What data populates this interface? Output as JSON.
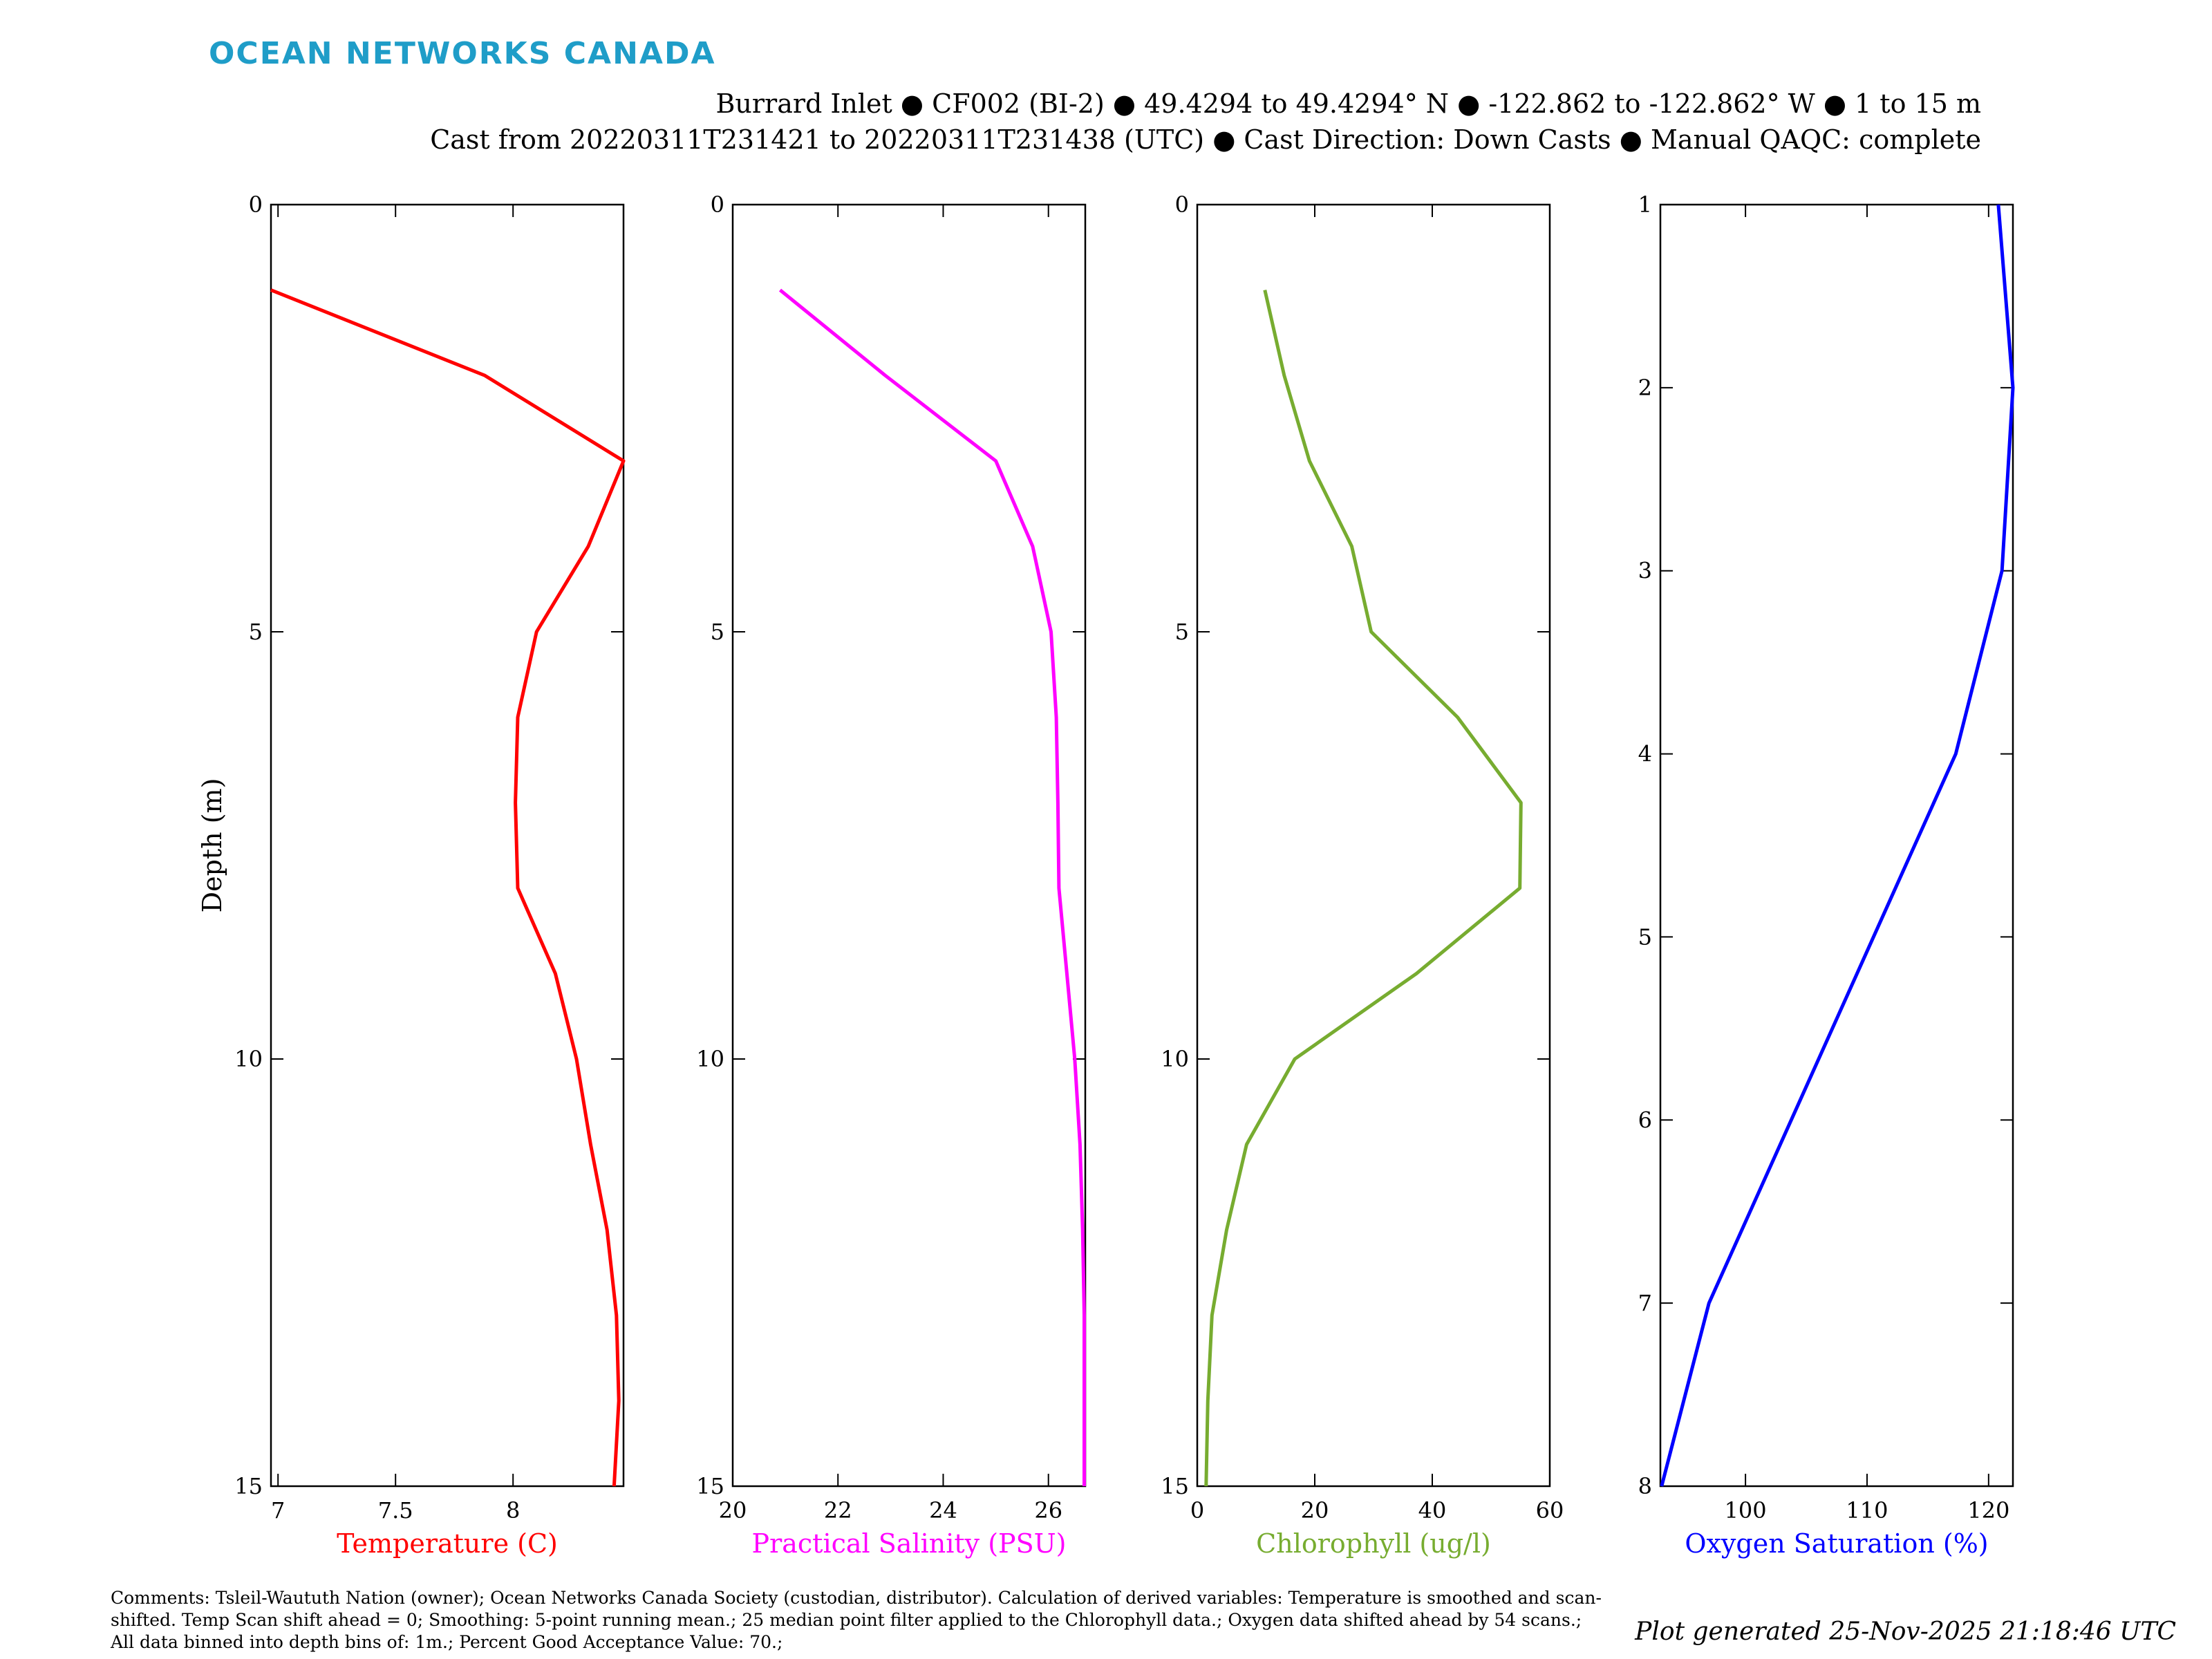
{
  "logo": "OCEAN NETWORKS CANADA",
  "header": {
    "line1": "Burrard Inlet ● CF002 (BI-2) ● 49.4294 to 49.4294° N ● -122.862 to -122.862° W ● 1 to 15 m",
    "line2": "Cast from 20220311T231421 to 20220311T231438 (UTC) ● Cast Direction: Down Casts ● Manual QAQC: complete"
  },
  "comments": "Comments: Tsleil-Waututh Nation (owner); Ocean Networks Canada Society (custodian, distributor). Calculation of derived variables: Temperature is smoothed and scan-shifted. Temp Scan shift ahead = 0; Smoothing: 5-point running mean.; 25 median point filter applied to the Chlorophyll data.; Oxygen data shifted ahead by 54 scans.; All data binned into depth bins of: 1m.; Percent Good Acceptance Value: 70.;",
  "generated": "Plot generated 25-Nov-2025 21:18:46 UTC",
  "chart_data": [
    {
      "type": "line",
      "xlabel": "Temperature (C)",
      "ylabel": "Depth (m)",
      "color": "#ff0000",
      "xlim": [
        6.97,
        8.47
      ],
      "ylim": [
        0,
        15
      ],
      "y_reversed": true,
      "xticks": [
        7,
        7.5,
        8
      ],
      "xtick_labels": [
        "7",
        "7.5",
        "8"
      ],
      "yticks": [
        0,
        5,
        10,
        15
      ],
      "series": [
        {
          "x": [
            6.97,
            7.88,
            8.47,
            8.32,
            8.1,
            8.02,
            8.01,
            8.02,
            8.18,
            8.27,
            8.33,
            8.4,
            8.44,
            8.45,
            8.43
          ],
          "y": [
            1,
            2,
            3,
            4,
            5,
            6,
            7,
            8,
            9,
            10,
            11,
            12,
            13,
            14,
            15
          ]
        }
      ]
    },
    {
      "type": "line",
      "xlabel": "Practical Salinity (PSU)",
      "ylabel": "",
      "color": "#ff00ff",
      "xlim": [
        20,
        26.7
      ],
      "ylim": [
        0,
        15
      ],
      "y_reversed": true,
      "xticks": [
        20,
        22,
        24,
        26
      ],
      "xtick_labels": [
        "20",
        "22",
        "24",
        "26"
      ],
      "yticks": [
        0,
        5,
        10,
        15
      ],
      "series": [
        {
          "x": [
            20.9,
            22.9,
            25.0,
            25.7,
            26.05,
            26.15,
            26.18,
            26.2,
            26.35,
            26.5,
            26.6,
            26.65,
            26.68,
            26.68,
            26.68
          ],
          "y": [
            1,
            2,
            3,
            4,
            5,
            6,
            7,
            8,
            9,
            10,
            11,
            12,
            13,
            14,
            15
          ]
        }
      ]
    },
    {
      "type": "line",
      "xlabel": "Chlorophyll (ug/l)",
      "ylabel": "",
      "color": "#77ac30",
      "xlim": [
        0,
        60
      ],
      "ylim": [
        0,
        15
      ],
      "y_reversed": true,
      "xticks": [
        0,
        20,
        40,
        60
      ],
      "xtick_labels": [
        "0",
        "20",
        "40",
        "60"
      ],
      "yticks": [
        0,
        5,
        10,
        15
      ],
      "series": [
        {
          "x": [
            11.5,
            14.8,
            19.1,
            26.3,
            29.6,
            44.3,
            55.1,
            54.9,
            37.3,
            16.6,
            8.4,
            5.0,
            2.5,
            1.8,
            1.5
          ],
          "y": [
            1,
            2,
            3,
            4,
            5,
            6,
            7,
            8,
            9,
            10,
            11,
            12,
            13,
            14,
            15
          ]
        }
      ]
    },
    {
      "type": "line",
      "xlabel": "Oxygen Saturation (%)",
      "ylabel": "",
      "color": "#0000ff",
      "xlim": [
        93,
        122
      ],
      "ylim": [
        1,
        8
      ],
      "y_reversed": true,
      "xticks": [
        100,
        110,
        120
      ],
      "xtick_labels": [
        "100",
        "110",
        "120"
      ],
      "yticks": [
        1,
        2,
        3,
        4,
        5,
        6,
        7,
        8
      ],
      "series": [
        {
          "x": [
            120.8,
            122.0,
            121.1,
            117.3,
            97.0,
            93.1
          ],
          "y": [
            1,
            2,
            3,
            4,
            7,
            8
          ]
        }
      ]
    }
  ]
}
